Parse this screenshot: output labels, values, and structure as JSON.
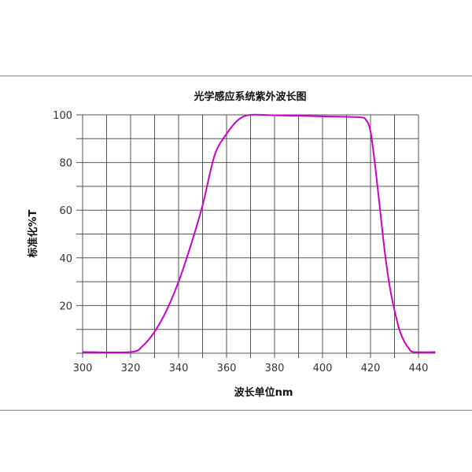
{
  "chart_data": {
    "type": "line",
    "title": "光学感应系统紫外波长图",
    "xlabel": "波长单位nm",
    "ylabel": "标准化%T",
    "xlim": [
      300,
      447
    ],
    "ylim": [
      0,
      100
    ],
    "x_ticks": [
      300,
      320,
      340,
      360,
      380,
      400,
      420,
      440
    ],
    "y_ticks": [
      20,
      40,
      60,
      80,
      100
    ],
    "grid": true,
    "grid_step_x": 10,
    "grid_step_y": 10,
    "line_color": "#cc00cc",
    "series": [
      {
        "x": [
          300,
          320,
          325,
          330,
          335,
          340,
          345,
          350,
          355,
          360,
          365,
          370,
          380,
          400,
          415,
          418,
          420,
          422,
          424,
          426,
          428,
          430,
          432,
          434,
          436,
          438,
          447
        ],
        "y": [
          0.5,
          0.5,
          3,
          9,
          18,
          30,
          45,
          62,
          83,
          92,
          98,
          100,
          99.8,
          99.4,
          99,
          98,
          93,
          78,
          60,
          42,
          28,
          18,
          10,
          5,
          2,
          0.5,
          0.5
        ]
      }
    ]
  }
}
